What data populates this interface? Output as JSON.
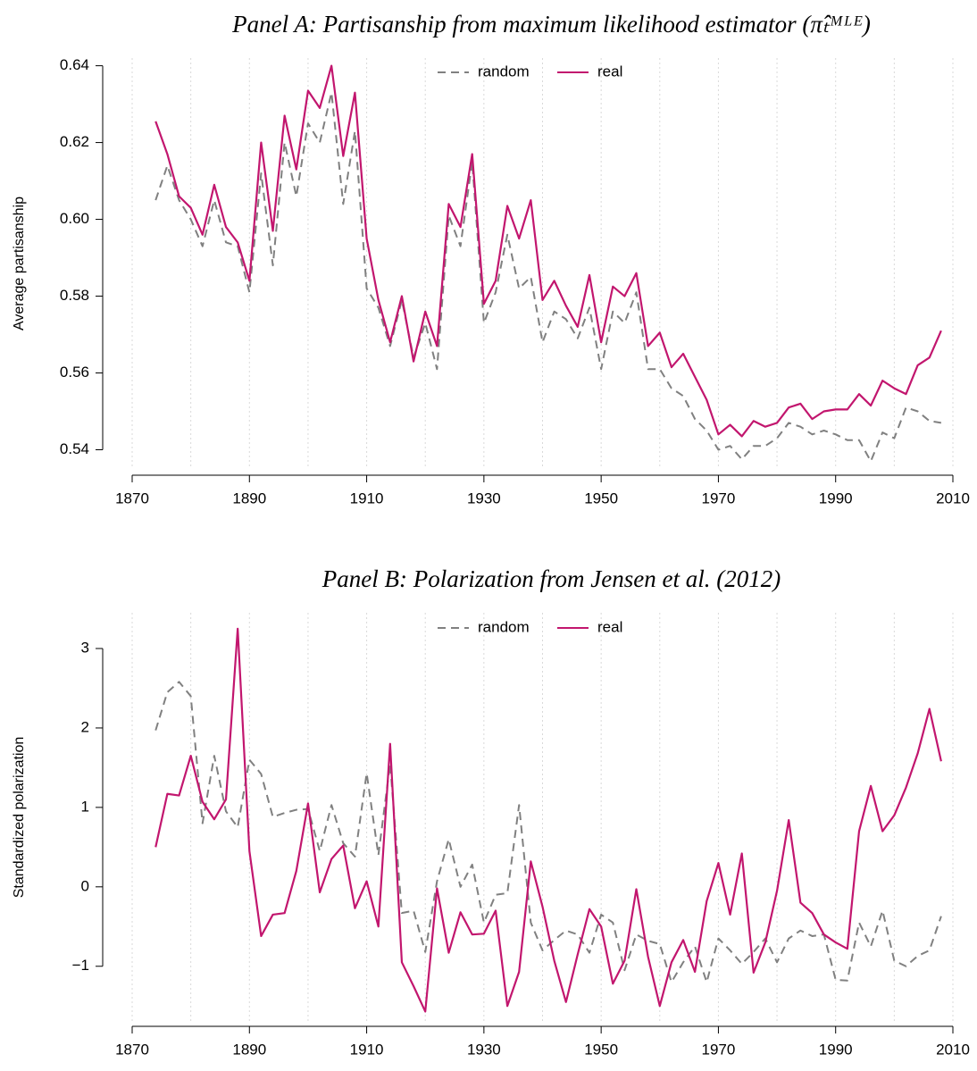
{
  "chart_data": [
    {
      "type": "line",
      "title": "Panel A: Partisanship from maximum likelihood estimator (π̂ₜᴹᴸᴱ)",
      "y_label": "Average partisanship",
      "x": [
        1874,
        1876,
        1878,
        1880,
        1882,
        1884,
        1886,
        1888,
        1890,
        1892,
        1894,
        1896,
        1898,
        1900,
        1902,
        1904,
        1906,
        1908,
        1910,
        1912,
        1914,
        1916,
        1918,
        1920,
        1922,
        1924,
        1926,
        1928,
        1930,
        1932,
        1934,
        1936,
        1938,
        1940,
        1942,
        1944,
        1946,
        1948,
        1950,
        1952,
        1954,
        1956,
        1958,
        1960,
        1962,
        1964,
        1966,
        1968,
        1970,
        1972,
        1974,
        1976,
        1978,
        1980,
        1982,
        1984,
        1986,
        1988,
        1990,
        1992,
        1994,
        1996,
        1998,
        2000,
        2002,
        2004,
        2006,
        2008
      ],
      "series": [
        {
          "name": "random",
          "color": "#808080",
          "style": "dashed",
          "values": [
            0.605,
            0.614,
            0.605,
            0.6,
            0.593,
            0.605,
            0.594,
            0.593,
            0.581,
            0.612,
            0.588,
            0.62,
            0.606,
            0.625,
            0.62,
            0.633,
            0.604,
            0.623,
            0.582,
            0.577,
            0.567,
            0.579,
            0.564,
            0.573,
            0.561,
            0.601,
            0.593,
            0.615,
            0.573,
            0.581,
            0.596,
            0.582,
            0.585,
            0.568,
            0.576,
            0.574,
            0.569,
            0.577,
            0.561,
            0.576,
            0.573,
            0.581,
            0.561,
            0.561,
            0.556,
            0.554,
            0.548,
            0.545,
            0.54,
            0.541,
            0.5375,
            0.541,
            0.541,
            0.543,
            0.547,
            0.546,
            0.544,
            0.545,
            0.544,
            0.5425,
            0.5425,
            0.537,
            0.5445,
            0.543,
            0.551,
            0.55,
            0.5475,
            0.547
          ]
        },
        {
          "name": "real",
          "color": "#c2166e",
          "style": "solid",
          "values": [
            0.6255,
            0.617,
            0.606,
            0.603,
            0.596,
            0.609,
            0.598,
            0.594,
            0.584,
            0.62,
            0.597,
            0.627,
            0.613,
            0.6335,
            0.629,
            0.64,
            0.6165,
            0.633,
            0.595,
            0.579,
            0.568,
            0.58,
            0.563,
            0.576,
            0.567,
            0.604,
            0.598,
            0.617,
            0.578,
            0.584,
            0.6035,
            0.595,
            0.605,
            0.579,
            0.584,
            0.5775,
            0.572,
            0.5855,
            0.568,
            0.5825,
            0.58,
            0.586,
            0.567,
            0.5705,
            0.5615,
            0.565,
            0.559,
            0.553,
            0.544,
            0.5465,
            0.5435,
            0.5475,
            0.546,
            0.547,
            0.551,
            0.552,
            0.548,
            0.55,
            0.5505,
            0.5505,
            0.5545,
            0.5515,
            0.558,
            0.556,
            0.5545,
            0.562,
            0.564,
            0.571
          ]
        }
      ],
      "xlim": [
        1870,
        2010
      ],
      "xticks": [
        1870,
        1890,
        1910,
        1930,
        1950,
        1970,
        1990,
        2010
      ],
      "xgrid": [
        1870,
        1880,
        1890,
        1900,
        1910,
        1920,
        1930,
        1940,
        1950,
        1960,
        1970,
        1980,
        1990,
        2000,
        2010
      ],
      "ylim": [
        0.535,
        0.642
      ],
      "yticks": [
        0.54,
        0.56,
        0.58,
        {
          "value": 0.6,
          "label": "0.60"
        },
        0.62,
        0.64
      ],
      "legend": "top"
    },
    {
      "type": "line",
      "title": "Panel B: Polarization from Jensen et al. (2012)",
      "y_label": "Standardized polarization",
      "x": [
        1874,
        1876,
        1878,
        1880,
        1882,
        1884,
        1886,
        1888,
        1890,
        1892,
        1894,
        1896,
        1898,
        1900,
        1902,
        1904,
        1906,
        1908,
        1910,
        1912,
        1914,
        1916,
        1918,
        1920,
        1922,
        1924,
        1926,
        1928,
        1930,
        1932,
        1934,
        1936,
        1938,
        1940,
        1942,
        1944,
        1946,
        1948,
        1950,
        1952,
        1954,
        1956,
        1958,
        1960,
        1962,
        1964,
        1966,
        1968,
        1970,
        1972,
        1974,
        1976,
        1978,
        1980,
        1982,
        1984,
        1986,
        1988,
        1990,
        1992,
        1994,
        1996,
        1998,
        2000,
        2002,
        2004,
        2006,
        2008
      ],
      "series": [
        {
          "name": "random",
          "color": "#808080",
          "style": "dashed",
          "values": [
            1.97,
            2.45,
            2.58,
            2.4,
            0.8,
            1.65,
            0.95,
            0.75,
            1.6,
            1.42,
            0.88,
            0.93,
            0.97,
            0.98,
            0.45,
            1.03,
            0.55,
            0.38,
            1.43,
            0.4,
            1.55,
            -0.33,
            -0.3,
            -0.82,
            0.07,
            0.6,
            0.0,
            0.28,
            -0.45,
            -0.1,
            -0.08,
            1.03,
            -0.45,
            -0.8,
            -0.67,
            -0.55,
            -0.6,
            -0.83,
            -0.35,
            -0.45,
            -1.05,
            -0.6,
            -0.68,
            -0.72,
            -1.2,
            -0.95,
            -0.75,
            -1.2,
            -0.65,
            -0.8,
            -0.97,
            -0.82,
            -0.65,
            -0.95,
            -0.65,
            -0.55,
            -0.62,
            -0.6,
            -1.17,
            -1.18,
            -0.45,
            -0.75,
            -0.3,
            -0.93,
            -1.0,
            -0.87,
            -0.8,
            -0.37
          ]
        },
        {
          "name": "real",
          "color": "#c2166e",
          "style": "solid",
          "values": [
            0.5,
            1.17,
            1.15,
            1.65,
            1.07,
            0.85,
            1.1,
            3.25,
            0.45,
            -0.62,
            -0.35,
            -0.33,
            0.2,
            1.05,
            -0.07,
            0.35,
            0.52,
            -0.27,
            0.07,
            -0.5,
            1.8,
            -0.95,
            -1.25,
            -1.57,
            -0.02,
            -0.83,
            -0.32,
            -0.6,
            -0.59,
            -0.3,
            -1.5,
            -1.07,
            0.32,
            -0.25,
            -0.93,
            -1.45,
            -0.85,
            -0.28,
            -0.5,
            -1.22,
            -0.93,
            -0.03,
            -0.88,
            -1.5,
            -0.95,
            -0.67,
            -1.07,
            -0.18,
            0.3,
            -0.35,
            0.42,
            -1.08,
            -0.7,
            -0.05,
            0.84,
            -0.2,
            -0.33,
            -0.6,
            -0.7,
            -0.78,
            0.7,
            1.27,
            0.7,
            0.9,
            1.25,
            1.68,
            2.24,
            1.58
          ]
        }
      ],
      "xlim": [
        1870,
        2010
      ],
      "xticks": [
        1870,
        1890,
        1910,
        1930,
        1950,
        1970,
        1990,
        2010
      ],
      "xgrid": [
        1870,
        1880,
        1890,
        1900,
        1910,
        1920,
        1930,
        1940,
        1950,
        1960,
        1970,
        1980,
        1990,
        2000,
        2010
      ],
      "ylim": [
        -1.7,
        3.45
      ],
      "yticks": [
        {
          "value": -1,
          "label": "−1"
        },
        0,
        1,
        2,
        3
      ],
      "legend": "top"
    }
  ]
}
